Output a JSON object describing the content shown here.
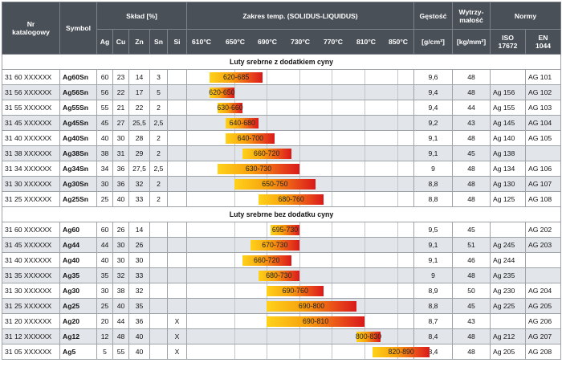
{
  "header": {
    "cat": "Nr\nkatalogowy",
    "symbol": "Symbol",
    "sklad": "Skład [%]",
    "zakres": "Zakres temp. (SOLIDUS-LIQUIDUS)",
    "gestosc": "Gęstość",
    "wytrz": "Wytrzy-\nmałość",
    "normy": "Normy",
    "elements": [
      "Ag",
      "Cu",
      "Zn",
      "Sn",
      "Si"
    ],
    "temps": [
      "610°C",
      "650°C",
      "690°C",
      "730°C",
      "770°C",
      "810°C",
      "850°C"
    ],
    "gestosc_unit": "[g/cm³]",
    "wytrz_unit": "[kg/mm²]",
    "iso": "ISO\n17672",
    "en": "EN\n1044"
  },
  "sections": [
    {
      "title": "Luty srebrne z dodatkiem cyny",
      "rows": [
        {
          "cat": "31 60 XXXXXX",
          "symbol": "Ag60Sn",
          "ag": "60",
          "cu": "23",
          "zn": "14",
          "sn": "3",
          "si": "",
          "range": "620-685",
          "density": "9,6",
          "strength": "48",
          "iso": "",
          "en": "AG 101"
        },
        {
          "cat": "31 56 XXXXXX",
          "symbol": "Ag56Sn",
          "ag": "56",
          "cu": "22",
          "zn": "17",
          "sn": "5",
          "si": "",
          "range": "620-650",
          "density": "9,4",
          "strength": "48",
          "iso": "Ag 156",
          "en": "AG 102"
        },
        {
          "cat": "31 55 XXXXXX",
          "symbol": "Ag55Sn",
          "ag": "55",
          "cu": "21",
          "zn": "22",
          "sn": "2",
          "si": "",
          "range": "630-660",
          "density": "9,4",
          "strength": "44",
          "iso": "Ag 155",
          "en": "AG 103"
        },
        {
          "cat": "31 45 XXXXXX",
          "symbol": "Ag45Sn",
          "ag": "45",
          "cu": "27",
          "zn": "25,5",
          "sn": "2,5",
          "si": "",
          "range": "640-680",
          "density": "9,2",
          "strength": "43",
          "iso": "Ag 145",
          "en": "AG 104"
        },
        {
          "cat": "31 40 XXXXXX",
          "symbol": "Ag40Sn",
          "ag": "40",
          "cu": "30",
          "zn": "28",
          "sn": "2",
          "si": "",
          "range": "640-700",
          "density": "9,1",
          "strength": "48",
          "iso": "Ag 140",
          "en": "AG 105"
        },
        {
          "cat": "31 38 XXXXXX",
          "symbol": "Ag38Sn",
          "ag": "38",
          "cu": "31",
          "zn": "29",
          "sn": "2",
          "si": "",
          "range": "660-720",
          "density": "9,1",
          "strength": "45",
          "iso": "Ag 138",
          "en": ""
        },
        {
          "cat": "31 34 XXXXXX",
          "symbol": "Ag34Sn",
          "ag": "34",
          "cu": "36",
          "zn": "27,5",
          "sn": "2,5",
          "si": "",
          "range": "630-730",
          "density": "9",
          "strength": "48",
          "iso": "Ag 134",
          "en": "AG 106"
        },
        {
          "cat": "31 30 XXXXXX",
          "symbol": "Ag30Sn",
          "ag": "30",
          "cu": "36",
          "zn": "32",
          "sn": "2",
          "si": "",
          "range": "650-750",
          "density": "8,8",
          "strength": "48",
          "iso": "Ag 130",
          "en": "AG 107"
        },
        {
          "cat": "31 25 XXXXXX",
          "symbol": "Ag25Sn",
          "ag": "25",
          "cu": "40",
          "zn": "33",
          "sn": "2",
          "si": "",
          "range": "680-760",
          "density": "8,8",
          "strength": "48",
          "iso": "Ag 125",
          "en": "AG 108"
        }
      ]
    },
    {
      "title": "Luty srebrne bez dodatku cyny",
      "rows": [
        {
          "cat": "31 60 XXXXXX",
          "symbol": "Ag60",
          "ag": "60",
          "cu": "26",
          "zn": "14",
          "sn": "",
          "si": "",
          "range": "695-730",
          "density": "9,5",
          "strength": "45",
          "iso": "",
          "en": "AG 202"
        },
        {
          "cat": "31 45 XXXXXX",
          "symbol": "Ag44",
          "ag": "44",
          "cu": "30",
          "zn": "26",
          "sn": "",
          "si": "",
          "range": "670-730",
          "density": "9,1",
          "strength": "51",
          "iso": "Ag 245",
          "en": "AG 203"
        },
        {
          "cat": "31 40 XXXXXX",
          "symbol": "Ag40",
          "ag": "40",
          "cu": "30",
          "zn": "30",
          "sn": "",
          "si": "",
          "range": "660-720",
          "density": "9,1",
          "strength": "46",
          "iso": "Ag 244",
          "en": ""
        },
        {
          "cat": "31 35 XXXXXX",
          "symbol": "Ag35",
          "ag": "35",
          "cu": "32",
          "zn": "33",
          "sn": "",
          "si": "",
          "range": "680-730",
          "density": "9",
          "strength": "48",
          "iso": "Ag 235",
          "en": ""
        },
        {
          "cat": "31 30 XXXXXX",
          "symbol": "Ag30",
          "ag": "30",
          "cu": "38",
          "zn": "32",
          "sn": "",
          "si": "",
          "range": "690-760",
          "density": "8,9",
          "strength": "50",
          "iso": "Ag 230",
          "en": "AG 204"
        },
        {
          "cat": "31 25 XXXXXX",
          "symbol": "Ag25",
          "ag": "25",
          "cu": "40",
          "zn": "35",
          "sn": "",
          "si": "",
          "range": "690-800",
          "density": "8,8",
          "strength": "45",
          "iso": "Ag 225",
          "en": "AG 205"
        },
        {
          "cat": "31 20 XXXXXX",
          "symbol": "Ag20",
          "ag": "20",
          "cu": "44",
          "zn": "36",
          "sn": "",
          "si": "X",
          "range": "690-810",
          "density": "8,7",
          "strength": "43",
          "iso": "",
          "en": "AG 206"
        },
        {
          "cat": "31 12 XXXXXX",
          "symbol": "Ag12",
          "ag": "12",
          "cu": "48",
          "zn": "40",
          "sn": "",
          "si": "X",
          "range": "800-830",
          "density": "8,4",
          "strength": "48",
          "iso": "Ag 212",
          "en": "AG 207"
        },
        {
          "cat": "31 05 XXXXXX",
          "symbol": "Ag5",
          "ag": "5",
          "cu": "55",
          "zn": "40",
          "sn": "",
          "si": "X",
          "range": "820-890",
          "density": "8,4",
          "strength": "48",
          "iso": "Ag 205",
          "en": "AG 208"
        }
      ]
    }
  ],
  "colors": {
    "header_bg": "#4a5058",
    "row_alt": "#e2e5e9",
    "bar_start": "#ffd21a",
    "bar_end": "#d81a1a"
  }
}
